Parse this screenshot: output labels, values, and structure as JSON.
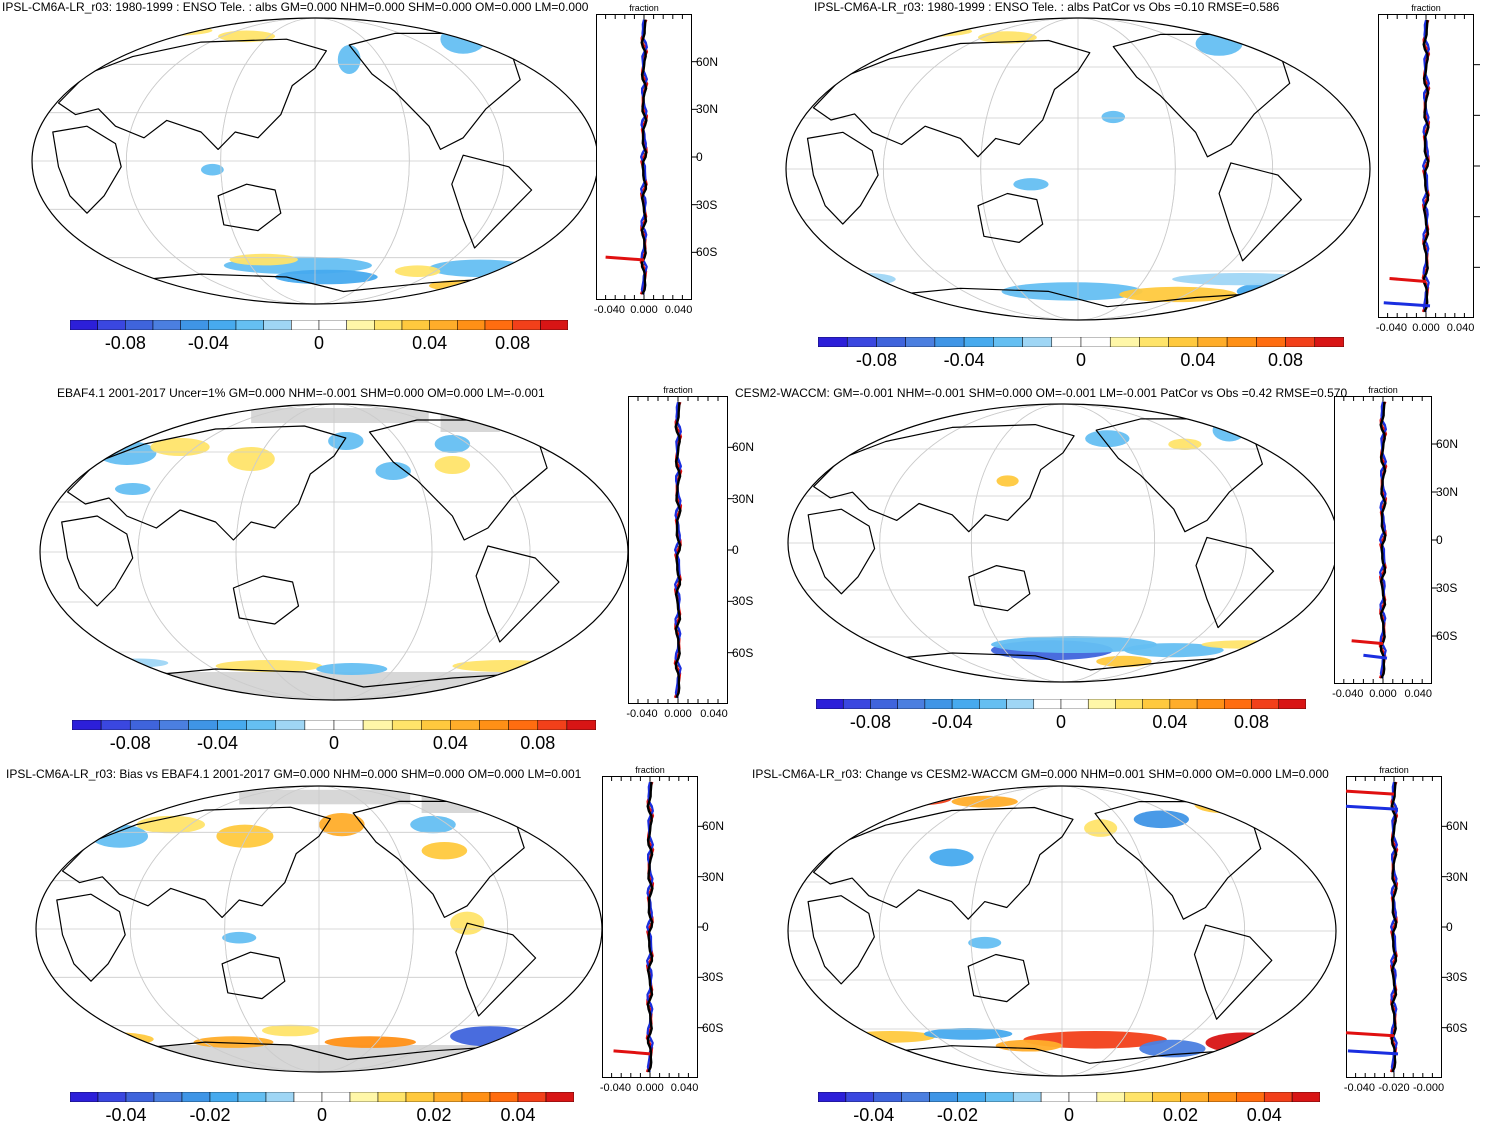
{
  "palette": [
    "#2c1fd9",
    "#3a47e0",
    "#3f64dc",
    "#4b7fe0",
    "#3f95e6",
    "#47aaee",
    "#65bff2",
    "#9fd6f5",
    "#ffffff",
    "#ffffff",
    "#fff7a8",
    "#ffe46a",
    "#ffc93e",
    "#ffad2a",
    "#ff9016",
    "#ff6d10",
    "#f2401a",
    "#d81515"
  ],
  "panels": [
    {
      "title": "IPSL-CM6A-LR_r03: 1980-1999 : ENSO Tele. : albs GM=0.000 NHM=0.000 SHM=0.000 OM=0.000 LM=0.000",
      "colorbar_labels": [
        "-0.08",
        "-0.04",
        "0",
        "0.04",
        "0.08"
      ],
      "zonal": {
        "axis_label": "fraction",
        "ticks": [
          "-0.040",
          "0.000",
          "0.040"
        ],
        "lat_labels": [
          "60N",
          "30N",
          "0",
          "30S",
          "60S"
        ]
      }
    },
    {
      "title": "IPSL-CM6A-LR_r03: 1980-1999 : ENSO Tele. : albs PatCor vs Obs =0.10 RMSE=0.586",
      "colorbar_labels": [
        "-0.08",
        "-0.04",
        "0",
        "0.04",
        "0.08"
      ],
      "zonal": {
        "axis_label": "fraction",
        "ticks": [
          "-0.040",
          "0.000",
          "0.040"
        ],
        "lat_labels": []
      }
    },
    {
      "title": "EBAF4.1 2001-2017 Uncer=1% GM=0.000 NHM=-0.001 SHM=0.000 OM=0.000 LM=-0.001",
      "colorbar_labels": [
        "-0.08",
        "-0.04",
        "0",
        "0.04",
        "0.08"
      ],
      "zonal": {
        "axis_label": "fraction",
        "ticks": [
          "-0.040",
          "0.000",
          "0.040"
        ],
        "lat_labels": [
          "60N",
          "30N",
          "0",
          "30S",
          "60S"
        ]
      }
    },
    {
      "title": "CESM2-WACCM: GM=-0.001 NHM=-0.001 SHM=0.000 OM=-0.001 LM=-0.001 PatCor vs Obs =0.42 RMSE=0.570",
      "colorbar_labels": [
        "-0.08",
        "-0.04",
        "0",
        "0.04",
        "0.08"
      ],
      "zonal": {
        "axis_label": "fraction",
        "ticks": [
          "-0.040",
          "0.000",
          "0.040"
        ],
        "lat_labels": [
          "60N",
          "30N",
          "0",
          "30S",
          "60S"
        ]
      }
    },
    {
      "title": "IPSL-CM6A-LR_r03: Bias vs EBAF4.1 2001-2017 GM=0.000 NHM=0.000 SHM=0.000 OM=0.000 LM=0.001",
      "colorbar_labels": [
        "-0.04",
        "-0.02",
        "0",
        "0.02",
        "0.04"
      ],
      "zonal": {
        "axis_label": "fraction",
        "ticks": [
          "-0.040",
          "0.000",
          "0.040"
        ],
        "lat_labels": [
          "60N",
          "30N",
          "0",
          "30S",
          "60S"
        ]
      }
    },
    {
      "title": "IPSL-CM6A-LR_r03: Change vs CESM2-WACCM GM=0.000 NHM=0.001 SHM=0.000 OM=0.000 LM=0.000",
      "colorbar_labels": [
        "-0.04",
        "-0.02",
        "0",
        "0.02",
        "0.04"
      ],
      "zonal": {
        "axis_label": "fraction",
        "ticks": [
          "-0.040",
          "-0.020",
          "-0.000"
        ],
        "lat_labels": [
          "60N",
          "30N",
          "0",
          "30S",
          "60S"
        ]
      }
    }
  ]
}
